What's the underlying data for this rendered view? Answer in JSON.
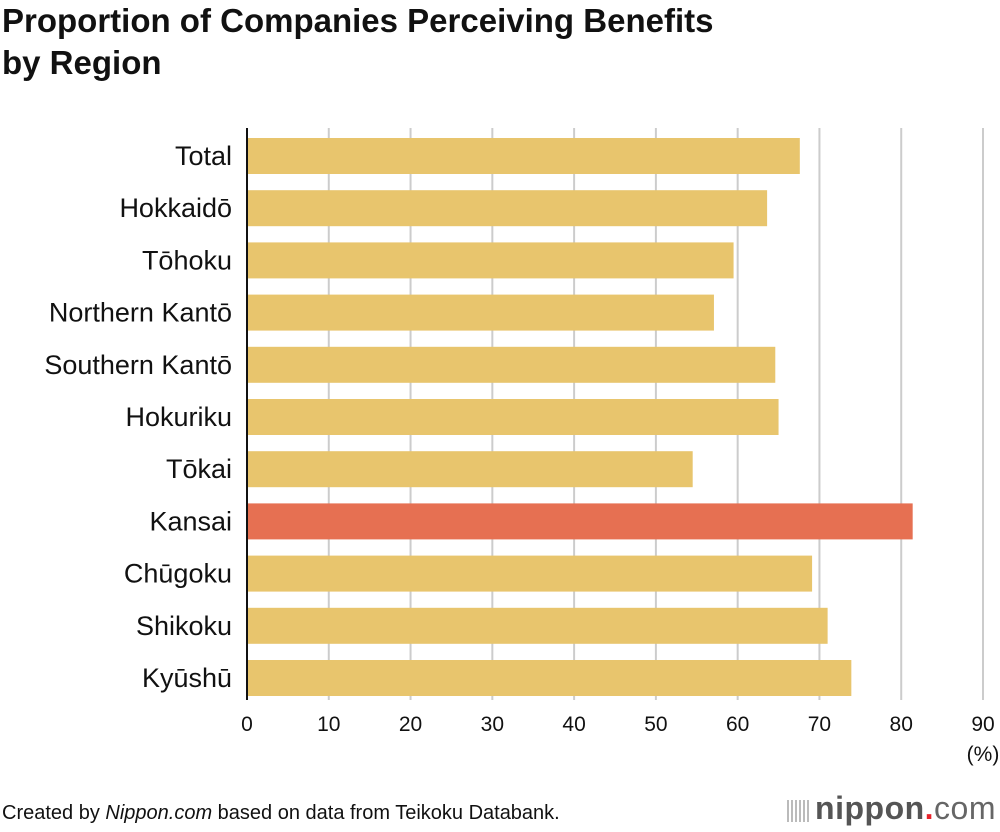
{
  "chart_data": {
    "type": "bar",
    "orientation": "horizontal",
    "title": "Proportion of Companies Perceiving Benefits by Region",
    "title_lines": [
      "Proportion of Companies Perceiving Benefits",
      "by Region"
    ],
    "categories": [
      "Total",
      "Hokkaidō",
      "Tōhoku",
      "Northern Kantō",
      "Southern Kantō",
      "Hokuriku",
      "Tōkai",
      "Kansai",
      "Chūgoku",
      "Shikoku",
      "Kyūshū"
    ],
    "values": [
      67.6,
      63.6,
      59.5,
      57.1,
      64.6,
      65.0,
      54.5,
      81.4,
      69.1,
      71.0,
      73.9
    ],
    "highlight": "Kansai",
    "xlim": [
      0,
      90
    ],
    "xticks": [
      0,
      10,
      20,
      30,
      40,
      50,
      60,
      70,
      80,
      90
    ],
    "xunit": "(%)",
    "grid": true,
    "colors": {
      "bar": "#e8c56d",
      "highlight": "#e67052",
      "grid": "#cccccc",
      "axis": "#111111"
    }
  },
  "footer": {
    "prefix": "Created by ",
    "source_italic": "Nippon.com",
    "suffix": " based on data from Teikoku Databank."
  },
  "logo": {
    "text": "nippon.com"
  }
}
